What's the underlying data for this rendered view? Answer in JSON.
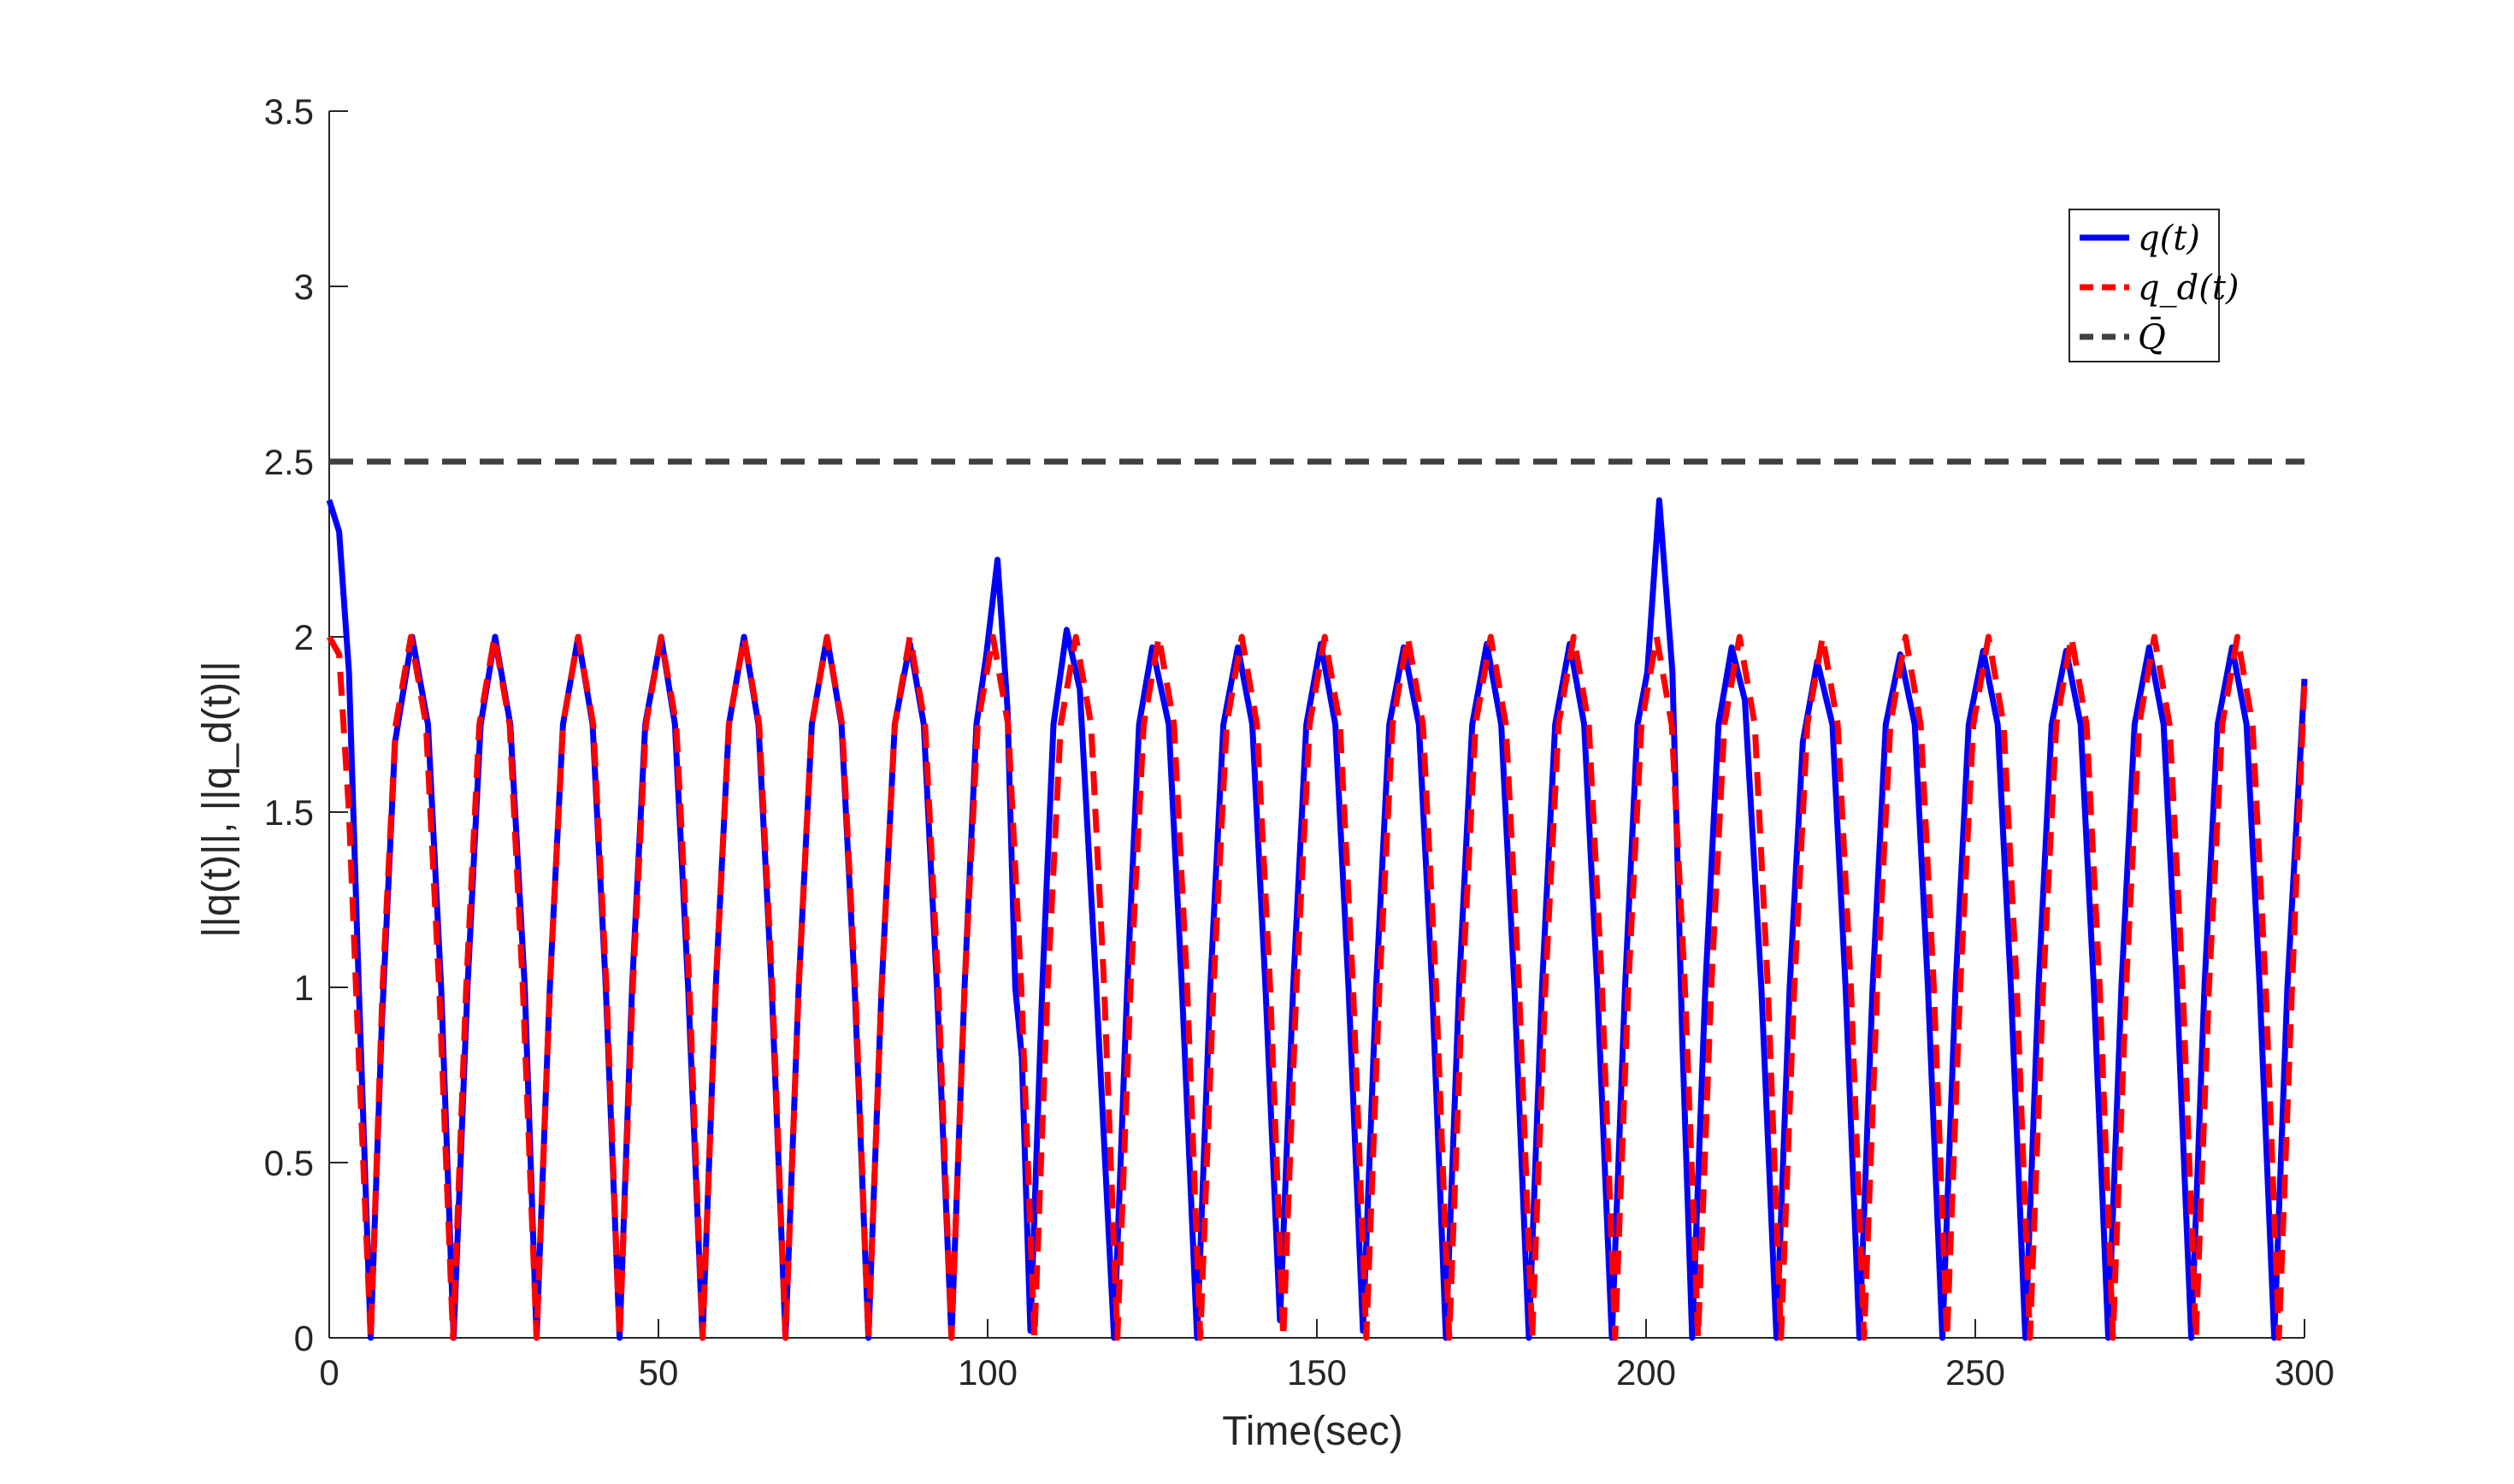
{
  "chart_data": {
    "type": "line",
    "title": "",
    "xlabel": "Time(sec)",
    "ylabel": "||q(t)||, ||q_d(t)||",
    "xlim": [
      0,
      300
    ],
    "ylim": [
      0,
      3.5
    ],
    "xticks": [
      0,
      50,
      100,
      150,
      200,
      250,
      300
    ],
    "yticks": [
      0,
      0.5,
      1,
      1.5,
      2,
      2.5,
      3,
      3.5
    ],
    "xtick_labels": [
      "0",
      "50",
      "100",
      "150",
      "200",
      "250",
      "300"
    ],
    "ytick_labels": [
      "0",
      "0.5",
      "1",
      "1.5",
      "2",
      "2.5",
      "3",
      "3.5"
    ],
    "grid": false,
    "legend_position": "top-right",
    "series": [
      {
        "name": "q(t)",
        "color": "#0000ff",
        "style": "solid",
        "points": [
          [
            0,
            2.39
          ],
          [
            1.5,
            2.3
          ],
          [
            3,
            1.9
          ],
          [
            4.5,
            1.0
          ],
          [
            6.3,
            0.0
          ],
          [
            8,
            0.9
          ],
          [
            10,
            1.7
          ],
          [
            12.6,
            2.0
          ],
          [
            15,
            1.75
          ],
          [
            17,
            1.0
          ],
          [
            18.9,
            0.0
          ],
          [
            21,
            1.0
          ],
          [
            23,
            1.75
          ],
          [
            25.2,
            2.0
          ],
          [
            27.5,
            1.75
          ],
          [
            29.7,
            1.0
          ],
          [
            31.5,
            0.0
          ],
          [
            33.5,
            1.0
          ],
          [
            35.5,
            1.75
          ],
          [
            37.8,
            2.0
          ],
          [
            40,
            1.75
          ],
          [
            42,
            1.0
          ],
          [
            44.1,
            0.0
          ],
          [
            46,
            1.0
          ],
          [
            48,
            1.75
          ],
          [
            50.4,
            2.0
          ],
          [
            52.5,
            1.75
          ],
          [
            54.5,
            1.0
          ],
          [
            56.7,
            0.0
          ],
          [
            58.7,
            1.0
          ],
          [
            60.7,
            1.75
          ],
          [
            63.0,
            2.0
          ],
          [
            65.2,
            1.75
          ],
          [
            67.2,
            1.0
          ],
          [
            69.3,
            0.0
          ],
          [
            71.3,
            1.0
          ],
          [
            73.3,
            1.75
          ],
          [
            75.6,
            2.0
          ],
          [
            77.8,
            1.75
          ],
          [
            79.8,
            1.0
          ],
          [
            81.9,
            0.0
          ],
          [
            83.9,
            1.0
          ],
          [
            85.9,
            1.75
          ],
          [
            88.2,
            1.98
          ],
          [
            90.3,
            1.75
          ],
          [
            92.3,
            1.0
          ],
          [
            94.5,
            0.0
          ],
          [
            96.5,
            1.0
          ],
          [
            98.3,
            1.75
          ],
          [
            99.8,
            1.95
          ],
          [
            101.5,
            2.22
          ],
          [
            103,
            1.8
          ],
          [
            104.2,
            1.0
          ],
          [
            105.2,
            0.8
          ],
          [
            106.5,
            0.02
          ],
          [
            108.3,
            1.0
          ],
          [
            110,
            1.75
          ],
          [
            112,
            2.02
          ],
          [
            114,
            1.85
          ],
          [
            116.5,
            1.0
          ],
          [
            119.2,
            0.0
          ],
          [
            121.2,
            1.0
          ],
          [
            123,
            1.75
          ],
          [
            125,
            1.97
          ],
          [
            127.5,
            1.75
          ],
          [
            129.5,
            1.0
          ],
          [
            131.8,
            0.0
          ],
          [
            133.8,
            1.0
          ],
          [
            135.8,
            1.75
          ],
          [
            138,
            1.97
          ],
          [
            140.2,
            1.75
          ],
          [
            142.2,
            1.0
          ],
          [
            144.4,
            0.05
          ],
          [
            146.4,
            1.0
          ],
          [
            148.4,
            1.75
          ],
          [
            150.6,
            1.98
          ],
          [
            152.8,
            1.75
          ],
          [
            154.8,
            1.0
          ],
          [
            157,
            0.02
          ],
          [
            159,
            1.0
          ],
          [
            161,
            1.75
          ],
          [
            163.2,
            1.97
          ],
          [
            165.5,
            1.75
          ],
          [
            167.5,
            1.0
          ],
          [
            169.6,
            0.0
          ],
          [
            171.6,
            1.0
          ],
          [
            173.6,
            1.75
          ],
          [
            175.8,
            1.98
          ],
          [
            178,
            1.75
          ],
          [
            180,
            1.0
          ],
          [
            182.2,
            0.0
          ],
          [
            184.2,
            1.0
          ],
          [
            186.2,
            1.75
          ],
          [
            188.4,
            1.98
          ],
          [
            190.6,
            1.75
          ],
          [
            192.6,
            1.0
          ],
          [
            194.8,
            0.0
          ],
          [
            196.8,
            1.0
          ],
          [
            198.7,
            1.75
          ],
          [
            200.2,
            1.9
          ],
          [
            202,
            2.39
          ],
          [
            204,
            1.9
          ],
          [
            205.5,
            0.85
          ],
          [
            207,
            0.0
          ],
          [
            209,
            1.0
          ],
          [
            211,
            1.75
          ],
          [
            213,
            1.97
          ],
          [
            215,
            1.82
          ],
          [
            217.5,
            1.0
          ],
          [
            219.8,
            0.0
          ],
          [
            221.8,
            1.0
          ],
          [
            223.8,
            1.7
          ],
          [
            226,
            1.93
          ],
          [
            228.3,
            1.75
          ],
          [
            230.3,
            1.0
          ],
          [
            232.4,
            0.0
          ],
          [
            234.4,
            1.0
          ],
          [
            236.4,
            1.75
          ],
          [
            238.6,
            1.95
          ],
          [
            240.8,
            1.75
          ],
          [
            242.8,
            1.0
          ],
          [
            245,
            0.0
          ],
          [
            247,
            1.0
          ],
          [
            249,
            1.75
          ],
          [
            251.2,
            1.96
          ],
          [
            253.4,
            1.75
          ],
          [
            255.4,
            1.0
          ],
          [
            257.6,
            0.0
          ],
          [
            259.6,
            1.0
          ],
          [
            261.6,
            1.75
          ],
          [
            263.8,
            1.96
          ],
          [
            266,
            1.75
          ],
          [
            268,
            1.0
          ],
          [
            270.2,
            0.0
          ],
          [
            272.2,
            1.0
          ],
          [
            274.2,
            1.75
          ],
          [
            276.4,
            1.97
          ],
          [
            278.6,
            1.75
          ],
          [
            280.6,
            1.0
          ],
          [
            282.8,
            0.0
          ],
          [
            284.8,
            1.0
          ],
          [
            286.8,
            1.75
          ],
          [
            289,
            1.97
          ],
          [
            291.2,
            1.75
          ],
          [
            293.2,
            1.0
          ],
          [
            295.4,
            0.0
          ],
          [
            297.4,
            1.0
          ],
          [
            300,
            1.88
          ]
        ]
      },
      {
        "name": "q_d(t)",
        "color": "#ff0000",
        "style": "dashed",
        "points": [
          [
            0,
            2.0
          ],
          [
            1.5,
            1.95
          ],
          [
            3,
            1.5
          ],
          [
            4.5,
            0.8
          ],
          [
            6.3,
            0.0
          ],
          [
            8.1,
            1.0
          ],
          [
            10.1,
            1.75
          ],
          [
            12.4,
            2.0
          ],
          [
            14.7,
            1.75
          ],
          [
            16.7,
            1.0
          ],
          [
            18.8,
            0.0
          ],
          [
            20.8,
            1.0
          ],
          [
            22.8,
            1.75
          ],
          [
            25.1,
            2.0
          ],
          [
            27.4,
            1.75
          ],
          [
            29.4,
            1.0
          ],
          [
            31.5,
            0.0
          ],
          [
            33.5,
            1.0
          ],
          [
            35.5,
            1.75
          ],
          [
            37.8,
            2.0
          ],
          [
            40.1,
            1.75
          ],
          [
            42.1,
            1.0
          ],
          [
            44.1,
            0.0
          ],
          [
            46.1,
            1.0
          ],
          [
            48.1,
            1.75
          ],
          [
            50.4,
            2.0
          ],
          [
            52.7,
            1.75
          ],
          [
            54.7,
            1.0
          ],
          [
            56.7,
            0.0
          ],
          [
            58.7,
            1.0
          ],
          [
            60.7,
            1.75
          ],
          [
            63.0,
            2.0
          ],
          [
            65.3,
            1.75
          ],
          [
            67.3,
            1.0
          ],
          [
            69.3,
            0.0
          ],
          [
            71.3,
            1.0
          ],
          [
            73.3,
            1.75
          ],
          [
            75.6,
            2.0
          ],
          [
            77.9,
            1.75
          ],
          [
            79.9,
            1.0
          ],
          [
            81.9,
            0.0
          ],
          [
            83.9,
            1.0
          ],
          [
            85.9,
            1.75
          ],
          [
            88.2,
            2.0
          ],
          [
            90.5,
            1.75
          ],
          [
            92.5,
            1.0
          ],
          [
            94.5,
            0.0
          ],
          [
            96.5,
            1.0
          ],
          [
            98.5,
            1.75
          ],
          [
            100.8,
            2.0
          ],
          [
            103.1,
            1.75
          ],
          [
            105.1,
            1.0
          ],
          [
            107.1,
            0.0
          ],
          [
            109.1,
            1.0
          ],
          [
            111.1,
            1.75
          ],
          [
            113.4,
            2.0
          ],
          [
            115.7,
            1.75
          ],
          [
            117.7,
            1.0
          ],
          [
            119.7,
            0.0
          ],
          [
            121.7,
            1.0
          ],
          [
            123.7,
            1.75
          ],
          [
            126,
            2.0
          ],
          [
            128.3,
            1.75
          ],
          [
            130.3,
            1.0
          ],
          [
            132.3,
            0.0
          ],
          [
            134.3,
            1.0
          ],
          [
            136.3,
            1.75
          ],
          [
            138.6,
            2.0
          ],
          [
            140.9,
            1.75
          ],
          [
            142.9,
            1.0
          ],
          [
            144.9,
            0.0
          ],
          [
            146.9,
            1.0
          ],
          [
            148.9,
            1.75
          ],
          [
            151.2,
            2.0
          ],
          [
            153.5,
            1.75
          ],
          [
            155.5,
            1.0
          ],
          [
            157.5,
            0.0
          ],
          [
            159.5,
            1.0
          ],
          [
            161.5,
            1.75
          ],
          [
            163.8,
            2.0
          ],
          [
            166.1,
            1.75
          ],
          [
            168.1,
            1.0
          ],
          [
            170.1,
            0.0
          ],
          [
            172.1,
            1.0
          ],
          [
            174.1,
            1.75
          ],
          [
            176.4,
            2.0
          ],
          [
            178.7,
            1.75
          ],
          [
            180.7,
            1.0
          ],
          [
            182.7,
            0.0
          ],
          [
            184.7,
            1.0
          ],
          [
            186.7,
            1.75
          ],
          [
            189,
            2.0
          ],
          [
            191.3,
            1.75
          ],
          [
            193.3,
            1.0
          ],
          [
            195.3,
            0.0
          ],
          [
            197.3,
            1.0
          ],
          [
            199.3,
            1.75
          ],
          [
            201.6,
            2.0
          ],
          [
            203.9,
            1.75
          ],
          [
            205.9,
            1.0
          ],
          [
            207.9,
            0.0
          ],
          [
            209.9,
            1.0
          ],
          [
            211.9,
            1.75
          ],
          [
            214.2,
            2.0
          ],
          [
            216.5,
            1.75
          ],
          [
            218.5,
            1.0
          ],
          [
            220.5,
            0.0
          ],
          [
            222.5,
            1.0
          ],
          [
            224.5,
            1.75
          ],
          [
            226.8,
            2.0
          ],
          [
            229.1,
            1.75
          ],
          [
            231.1,
            1.0
          ],
          [
            233.1,
            0.0
          ],
          [
            235.1,
            1.0
          ],
          [
            237.1,
            1.75
          ],
          [
            239.4,
            2.0
          ],
          [
            241.7,
            1.75
          ],
          [
            243.7,
            1.0
          ],
          [
            245.7,
            0.0
          ],
          [
            247.7,
            1.0
          ],
          [
            249.7,
            1.75
          ],
          [
            252,
            2.0
          ],
          [
            254.3,
            1.75
          ],
          [
            256.3,
            1.0
          ],
          [
            258.3,
            0.0
          ],
          [
            260.3,
            1.0
          ],
          [
            262.3,
            1.75
          ],
          [
            264.6,
            2.0
          ],
          [
            266.9,
            1.75
          ],
          [
            268.9,
            1.0
          ],
          [
            270.9,
            0.0
          ],
          [
            272.9,
            1.0
          ],
          [
            274.9,
            1.75
          ],
          [
            277.2,
            2.0
          ],
          [
            279.5,
            1.75
          ],
          [
            281.5,
            1.0
          ],
          [
            283.5,
            0.0
          ],
          [
            285.5,
            1.0
          ],
          [
            287.5,
            1.75
          ],
          [
            289.8,
            2.0
          ],
          [
            292.1,
            1.75
          ],
          [
            294.1,
            1.0
          ],
          [
            296.1,
            0.0
          ],
          [
            298.1,
            1.0
          ],
          [
            300,
            1.88
          ]
        ]
      },
      {
        "name": "Q̄",
        "color": "#404040",
        "style": "dashed",
        "points": [
          [
            0,
            2.5
          ],
          [
            300,
            2.5
          ]
        ]
      }
    ]
  }
}
